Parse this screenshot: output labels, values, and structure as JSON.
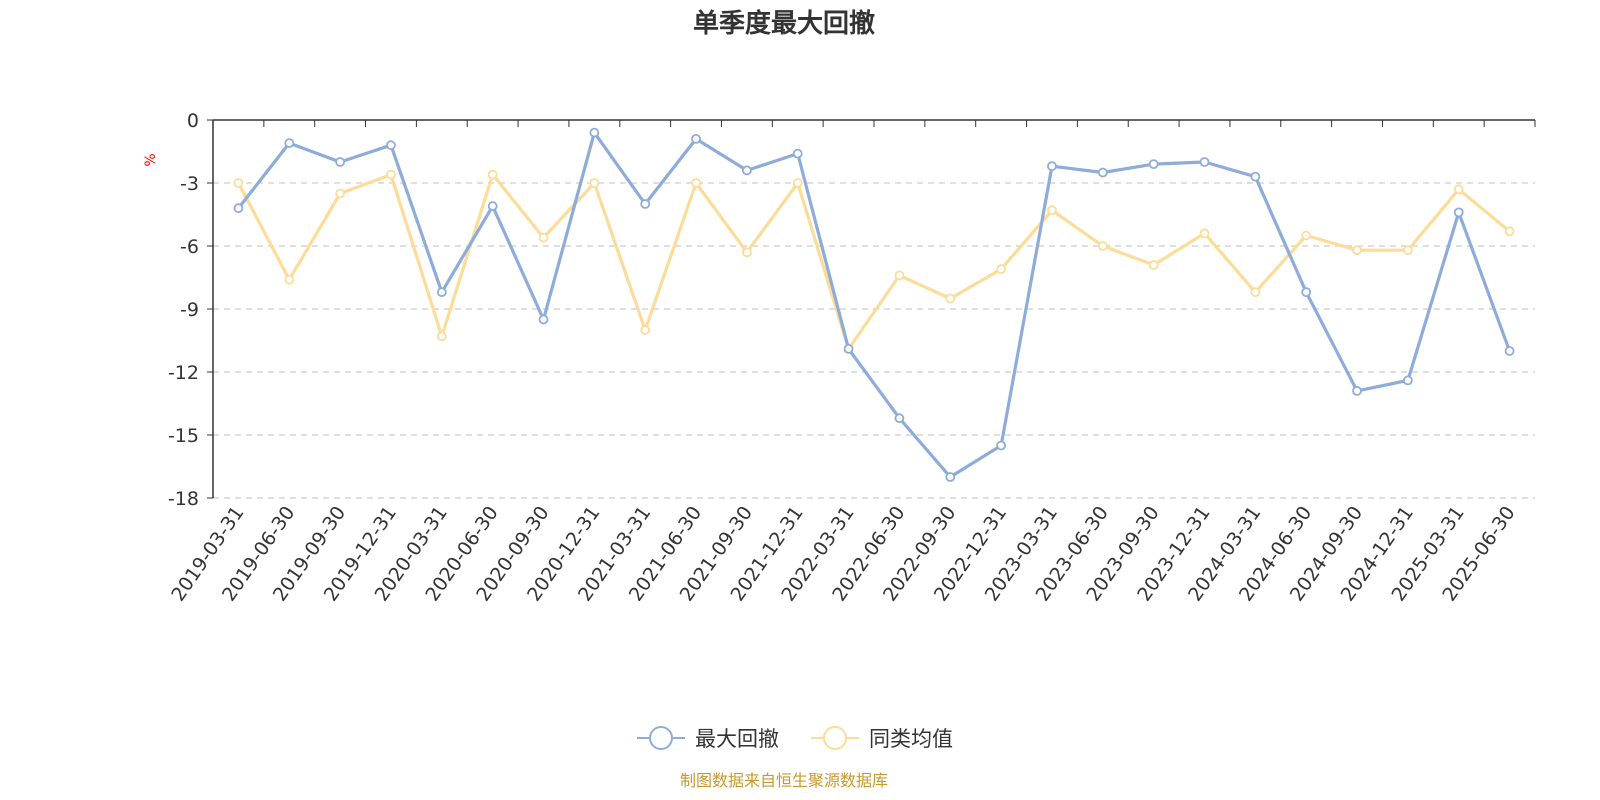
{
  "chart_data": {
    "type": "line",
    "title": "单季度最大回撤",
    "ylabel": "%",
    "ylim": [
      -18,
      0
    ],
    "yticks": [
      0,
      -3,
      -6,
      -9,
      -12,
      -15,
      -18
    ],
    "grid": true,
    "legend_position": "bottom",
    "categories": [
      "2019-03-31",
      "2019-06-30",
      "2019-09-30",
      "2019-12-31",
      "2020-03-31",
      "2020-06-30",
      "2020-09-30",
      "2020-12-31",
      "2021-03-31",
      "2021-06-30",
      "2021-09-30",
      "2021-12-31",
      "2022-03-31",
      "2022-06-30",
      "2022-09-30",
      "2022-12-31",
      "2023-03-31",
      "2023-06-30",
      "2023-09-30",
      "2023-12-31",
      "2024-03-31",
      "2024-06-30",
      "2024-09-30",
      "2024-12-31",
      "2025-03-31",
      "2025-06-30"
    ],
    "series": [
      {
        "name": "最大回撤",
        "color": "#8eacd9",
        "values": [
          -4.2,
          -1.1,
          -2.0,
          -1.2,
          -8.2,
          -4.1,
          -9.5,
          -0.6,
          -4.0,
          -0.9,
          -2.4,
          -1.6,
          -10.9,
          -14.2,
          -17.0,
          -15.5,
          -2.2,
          -2.5,
          -2.1,
          -2.0,
          -2.7,
          -8.2,
          -12.9,
          -12.4,
          -4.4,
          -11.0
        ]
      },
      {
        "name": "同类均值",
        "color": "#fddb99",
        "values": [
          -3.0,
          -7.6,
          -3.5,
          -2.6,
          -10.3,
          -2.6,
          -5.6,
          -3.0,
          -10.0,
          -3.0,
          -6.3,
          -3.0,
          -10.9,
          -7.4,
          -8.5,
          -7.1,
          -4.3,
          -6.0,
          -6.9,
          -5.4,
          -8.2,
          -5.5,
          -6.2,
          -6.2,
          -3.3,
          -5.3
        ]
      }
    ],
    "source": "制图数据来自恒生聚源数据库"
  },
  "colors": {
    "axis": "#333333",
    "grid": "#cccccc",
    "unit": "#ff0000",
    "source": "#c8982c"
  }
}
